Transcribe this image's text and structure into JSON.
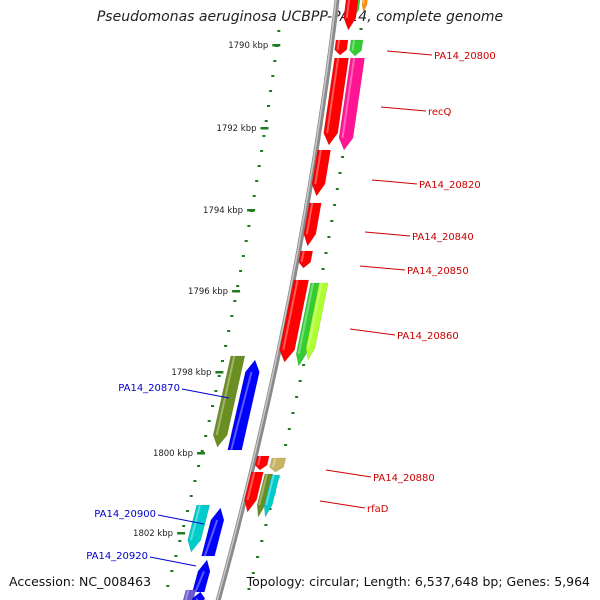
{
  "title": "Pseudomonas aeruginosa UCBPP-PA14, complete genome",
  "accession_text": "Accession: NC_008463",
  "summary_text": "Topology: circular; Length: 6,537,648 bp; Genes: 5,964",
  "ticks": [
    {
      "label": "1790 kbp",
      "kbp": 1790
    },
    {
      "label": "1792 kbp",
      "kbp": 1792
    },
    {
      "label": "1794 kbp",
      "kbp": 1794
    },
    {
      "label": "1796 kbp",
      "kbp": 1796
    },
    {
      "label": "1798 kbp",
      "kbp": 1798
    },
    {
      "label": "1800 kbp",
      "kbp": 1800
    },
    {
      "label": "1802 kbp",
      "kbp": 1802
    }
  ],
  "gene_labels_right": [
    {
      "text": "PA14_20800",
      "color": "#cc0000"
    },
    {
      "text": "recQ",
      "color": "#cc0000"
    },
    {
      "text": "PA14_20820",
      "color": "#cc0000"
    },
    {
      "text": "PA14_20840",
      "color": "#cc0000"
    },
    {
      "text": "PA14_20850",
      "color": "#cc0000"
    },
    {
      "text": "PA14_20860",
      "color": "#cc0000"
    },
    {
      "text": "PA14_20880",
      "color": "#cc0000"
    },
    {
      "text": "rfaD",
      "color": "#cc0000"
    }
  ],
  "gene_labels_left": [
    {
      "text": "PA14_20870",
      "color": "#0000cc"
    },
    {
      "text": "PA14_20900",
      "color": "#0000cc"
    },
    {
      "text": "PA14_20920",
      "color": "#0000cc"
    }
  ],
  "colors": {
    "backbone": "#8a8a8a",
    "tick": "#1f7a1f",
    "forward_gene": "#ff0000",
    "reverse_gene": "#0000ff",
    "magenta": "#ff1493",
    "green": "#33cc33",
    "olive": "#6b8e23",
    "cyan": "#00cccc",
    "khaki": "#c8b464",
    "yellowgreen": "#adff2f",
    "orange": "#ff8c00"
  }
}
